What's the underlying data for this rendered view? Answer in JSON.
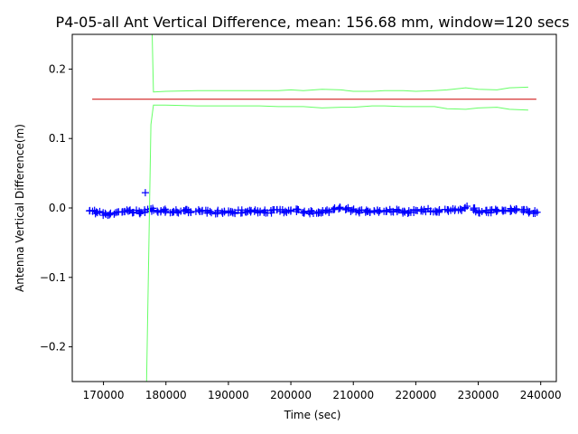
{
  "chart_data": {
    "type": "scatter",
    "title": "P4-05-all Ant Vertical Difference, mean: 156.68 mm, window=120 secs",
    "xlabel": "Time (sec)",
    "ylabel": "Antenna Vertical Difference(m)",
    "xlim": [
      165000,
      242500
    ],
    "ylim": [
      -0.25,
      0.25
    ],
    "x_ticks": [
      170000,
      180000,
      190000,
      200000,
      210000,
      220000,
      230000,
      240000
    ],
    "x_tick_labels": [
      "170000",
      "180000",
      "190000",
      "200000",
      "210000",
      "220000",
      "230000",
      "240000"
    ],
    "y_ticks": [
      -0.2,
      -0.1,
      0.0,
      0.1,
      0.2
    ],
    "y_tick_labels": [
      "−0.2",
      "−0.1",
      "0.0",
      "0.1",
      "0.2"
    ],
    "grid": false,
    "legend": "none",
    "series": [
      {
        "kind": "scatter",
        "marker": "+",
        "color": "#0000ff",
        "x": [
          168200,
          169000,
          170000,
          171000,
          172000,
          173000,
          174000,
          175000,
          176000,
          177000,
          178000,
          179000,
          180000,
          181000,
          182000,
          183000,
          184000,
          185000,
          186000,
          187000,
          188000,
          189000,
          190000,
          191000,
          192000,
          193000,
          194000,
          195000,
          196000,
          197000,
          198000,
          199000,
          200000,
          201000,
          202000,
          203000,
          204000,
          205000,
          206000,
          207000,
          208000,
          209000,
          210000,
          211000,
          212000,
          213000,
          214000,
          215000,
          216000,
          217000,
          218000,
          219000,
          220000,
          221000,
          222000,
          223000,
          224000,
          225000,
          226000,
          227000,
          228000,
          229000,
          230000,
          231000,
          232000,
          233000,
          234000,
          235000,
          236000,
          237000,
          238000,
          239000
        ],
        "y": [
          -0.004,
          -0.006,
          -0.008,
          -0.009,
          -0.007,
          -0.006,
          -0.005,
          -0.005,
          -0.006,
          -0.004,
          -0.003,
          -0.004,
          -0.004,
          -0.005,
          -0.005,
          -0.004,
          -0.005,
          -0.005,
          -0.004,
          -0.006,
          -0.006,
          -0.006,
          -0.005,
          -0.006,
          -0.005,
          -0.004,
          -0.004,
          -0.005,
          -0.005,
          -0.005,
          -0.004,
          -0.005,
          -0.004,
          -0.004,
          -0.005,
          -0.006,
          -0.006,
          -0.005,
          -0.004,
          0.0,
          0.0,
          -0.002,
          -0.003,
          -0.005,
          -0.005,
          -0.004,
          -0.004,
          -0.005,
          -0.004,
          -0.004,
          -0.005,
          -0.006,
          -0.004,
          -0.003,
          -0.003,
          -0.004,
          -0.004,
          -0.003,
          -0.003,
          -0.002,
          0.0,
          -0.002,
          -0.005,
          -0.006,
          -0.005,
          -0.004,
          -0.004,
          -0.003,
          -0.003,
          -0.004,
          -0.005,
          -0.006
        ]
      },
      {
        "kind": "scatter",
        "marker": "+",
        "color": "#0000ff",
        "x": [
          176700
        ],
        "y": [
          0.022
        ]
      },
      {
        "kind": "line",
        "color": "#cc0000",
        "x": [
          168200,
          239300
        ],
        "y": [
          0.15668,
          0.15668
        ]
      },
      {
        "kind": "line",
        "color": "#66ff66",
        "x": [
          177800,
          178000,
          180000,
          185000,
          190000,
          195000,
          198000,
          200000,
          202000,
          205000,
          208000,
          210000,
          213000,
          215000,
          218000,
          220000,
          223000,
          225000,
          228000,
          230000,
          233000,
          235000,
          238000
        ],
        "y": [
          0.25,
          0.167,
          0.168,
          0.169,
          0.169,
          0.169,
          0.169,
          0.17,
          0.169,
          0.171,
          0.17,
          0.168,
          0.168,
          0.169,
          0.169,
          0.168,
          0.169,
          0.17,
          0.173,
          0.171,
          0.17,
          0.173,
          0.174
        ]
      },
      {
        "kind": "line",
        "color": "#66ff66",
        "x": [
          176900,
          177600,
          178000,
          180000,
          185000,
          190000,
          195000,
          198000,
          200000,
          202000,
          205000,
          208000,
          210000,
          213000,
          215000,
          218000,
          220000,
          223000,
          225000,
          228000,
          230000,
          233000,
          235000,
          238000
        ],
        "y": [
          -0.25,
          0.12,
          0.148,
          0.148,
          0.147,
          0.147,
          0.147,
          0.146,
          0.146,
          0.146,
          0.144,
          0.145,
          0.145,
          0.147,
          0.147,
          0.146,
          0.146,
          0.146,
          0.143,
          0.142,
          0.144,
          0.145,
          0.142,
          0.141
        ]
      }
    ]
  }
}
